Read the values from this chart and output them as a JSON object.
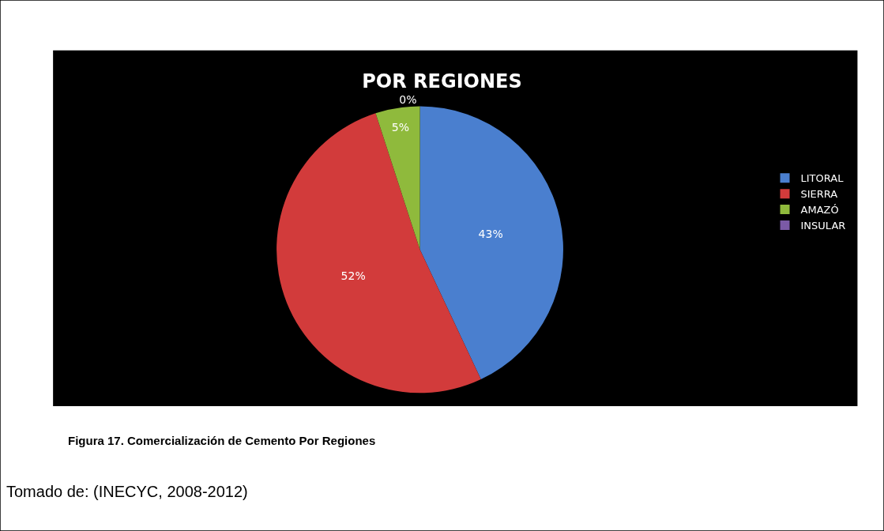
{
  "chart_data": {
    "type": "pie",
    "title": "POR REGIONES",
    "categories": [
      "LITORAL",
      "SIERRA",
      "AMAZÓ",
      "INSULAR"
    ],
    "values": [
      43,
      52,
      5,
      0
    ],
    "colors": [
      "#4a7fcf",
      "#d23b3b",
      "#8fba3c",
      "#7b5aa6"
    ],
    "value_labels": [
      "43%",
      "52%",
      "5%",
      "0%"
    ],
    "legend": "right",
    "annotations": [
      "Figura 17. Comercialización de Cemento Por Regiones",
      "Tomado de: (INECYC, 2008-2012)"
    ]
  }
}
